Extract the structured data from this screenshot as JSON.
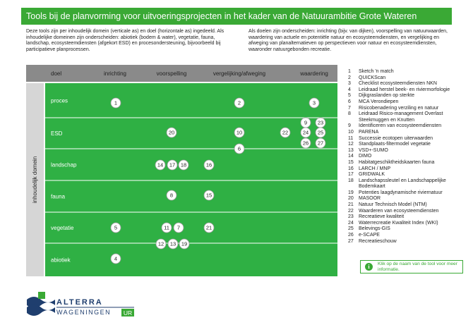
{
  "header": {
    "title": "Tools bij de planvorming voor uitvoeringsprojecten in het kader van de Natuurambitie Grote Wateren"
  },
  "intro": [
    "Deze tools zijn per inhoudelijk domein (verticale as) en doel (horizontale as) ingedeeld. Als inhoudelijke domeinen zijn onderscheiden: abiotiek (bodem & water), vegetatie, fauna, landschap, ecosysteemdiensten (afgekort ESD) en procesondersteuning, bijvoorbeeld bij participatieve planprocessen.",
    "Als doelen zijn onderscheiden: inrichting (bijv. van dijken), voorspelling van natuurwaarden, waardering van actuele en potentiële natuur en ecosysteemdiensten, en vergelijking en afweging van planalternatieven op perspectieven voor natuur en ecosysteemdiensten, waaronder natuurgebonden recreatie."
  ],
  "grid": {
    "axis_label": "doel",
    "columns": [
      "inrichting",
      "voorspelling",
      "vergelijking/afweging",
      "waardering"
    ],
    "domain_label": "inhoudelijk domein",
    "rows": [
      "proces",
      "ESD",
      "landschap",
      "fauna",
      "vegetatie",
      "abiotiek"
    ],
    "markers": [
      "1",
      "2",
      "3",
      "9",
      "23",
      "20",
      "10",
      "22",
      "24",
      "25",
      "26",
      "27",
      "6",
      "14",
      "17",
      "18",
      "16",
      "8",
      "15",
      "5",
      "11",
      "7",
      "21",
      "12",
      "13",
      "19",
      "4"
    ]
  },
  "tools": [
    {
      "number": "1",
      "name": "Sketch 'n match"
    },
    {
      "number": "2",
      "name": "QUICKScan"
    },
    {
      "number": "3",
      "name": "Checklist ecosysteemdiensten NKN"
    },
    {
      "number": "4",
      "name": "Leidraad herstel beek- en riviermorfologie"
    },
    {
      "number": "5",
      "name": "Dijkgraslanden op sterkte"
    },
    {
      "number": "6",
      "name": "MCA Verondiepen"
    },
    {
      "number": "7",
      "name": "Risicobenadering verziling en natuur"
    },
    {
      "number": "8",
      "name": "Leidraad Risico-management Overlast Steekmuggen en Knutten"
    },
    {
      "number": "9",
      "name": "Identificeren van ecosysteemdiensten"
    },
    {
      "number": "10",
      "name": "PARENA"
    },
    {
      "number": "11",
      "name": "Successie ecotopen uiterwaarden"
    },
    {
      "number": "12",
      "name": "Standplaats-filtermodel vegetatie"
    },
    {
      "number": "13",
      "name": "VSD+-SUMO"
    },
    {
      "number": "14",
      "name": "DIMO"
    },
    {
      "number": "15",
      "name": "Habitatgeschiktheidskaarten fauna"
    },
    {
      "number": "16",
      "name": "LARCH / MNP"
    },
    {
      "number": "17",
      "name": "GRIDWALK"
    },
    {
      "number": "18",
      "name": "Landschapssleutel en Landschappelijke Bodemkaart"
    },
    {
      "number": "19",
      "name": "Potenties laagdynamische riviernatuur"
    },
    {
      "number": "20",
      "name": "MASOOR"
    },
    {
      "number": "21",
      "name": "Natuur Technisch Model (NTM)"
    },
    {
      "number": "22",
      "name": "Waarderen van ecosysteemdiensten"
    },
    {
      "number": "23",
      "name": "Recreatieve kwaliteit"
    },
    {
      "number": "24",
      "name": "Waterrecreatie Kwaliteit Index (WKI)"
    },
    {
      "number": "25",
      "name": "Belevings-GIS"
    },
    {
      "number": "26",
      "name": "e-SCAPE"
    },
    {
      "number": "27",
      "name": "Recreatieschouw"
    }
  ],
  "info": "Klik op de naam van de tool voor meer informatie.",
  "logo": {
    "name": "ALTERRA",
    "org": "WAGENINGEN",
    "suffix": "UR"
  }
}
